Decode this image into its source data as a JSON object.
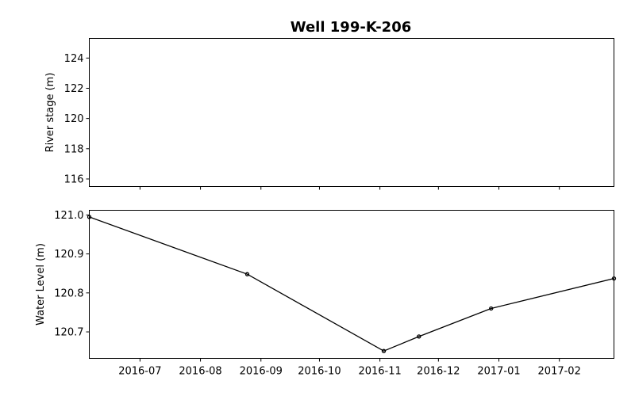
{
  "chart_data": {
    "title": "Well 199-K-206",
    "x_ticks": [
      "2016-07",
      "2016-08",
      "2016-09",
      "2016-10",
      "2016-11",
      "2016-12",
      "2017-01",
      "2017-02"
    ],
    "x_tick_dates": [
      "2016-07-01",
      "2016-08-01",
      "2016-09-01",
      "2016-10-01",
      "2016-11-01",
      "2016-12-01",
      "2017-01-01",
      "2017-02-01"
    ],
    "xlim": [
      "2016-06-05",
      "2017-03-01"
    ],
    "panels": [
      {
        "type": "line",
        "ylabel": "River stage (m)",
        "ylim": [
          115.5,
          125.3
        ],
        "y_ticks": [
          "116",
          "118",
          "120",
          "122",
          "124"
        ],
        "series": []
      },
      {
        "type": "line",
        "ylabel": "Water Level (m)",
        "ylim": [
          120.632,
          121.012
        ],
        "y_ticks": [
          "120.7",
          "120.8",
          "120.9",
          "121.0"
        ],
        "series": [
          {
            "color": "#000000",
            "marker": "circle",
            "points": [
              {
                "x": "2016-06-05",
                "y": 120.995
              },
              {
                "x": "2016-08-25",
                "y": 120.848
              },
              {
                "x": "2016-11-03",
                "y": 120.651
              },
              {
                "x": "2016-11-21",
                "y": 120.688
              },
              {
                "x": "2016-12-28",
                "y": 120.76
              },
              {
                "x": "2017-03-01",
                "y": 120.837
              }
            ]
          }
        ]
      }
    ]
  }
}
